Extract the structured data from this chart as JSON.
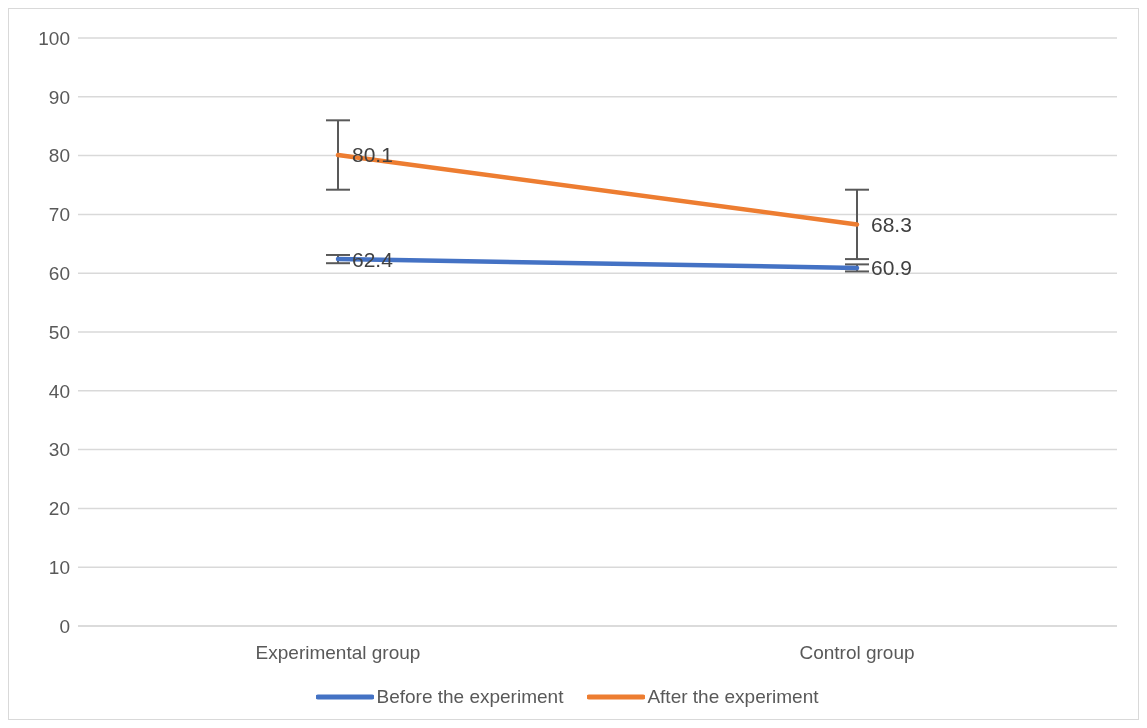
{
  "chart_data": {
    "type": "line",
    "categories": [
      "Experimental group",
      "Control group"
    ],
    "series": [
      {
        "name": "Before the experiment",
        "color": "#4472c4",
        "values": [
          62.4,
          60.9
        ],
        "errors": [
          0.7,
          0.6
        ]
      },
      {
        "name": "After the experiment",
        "color": "#ed7d31",
        "values": [
          80.1,
          68.3
        ],
        "errors": [
          5.9,
          5.9
        ]
      }
    ],
    "ylim": [
      0,
      100
    ],
    "yticks": [
      0,
      10,
      20,
      30,
      40,
      50,
      60,
      70,
      80,
      90,
      100
    ],
    "grid": "y",
    "legend": "bottom",
    "data_labels": true,
    "marker": "none",
    "line_style": "solid"
  }
}
